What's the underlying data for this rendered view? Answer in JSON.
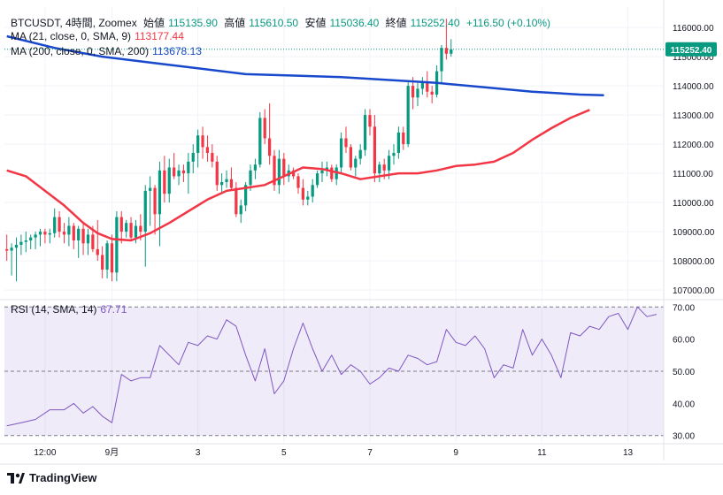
{
  "header": {
    "symbol": "BTCUSDT, 4時間, Zoomex",
    "open_label": "始値",
    "open": "115135.90",
    "high_label": "高値",
    "high": "115610.50",
    "low_label": "安値",
    "low": "115036.40",
    "close_label": "終値",
    "close": "115252.40",
    "change": "+116.50 (+0.10%)"
  },
  "ma21": {
    "label": "MA (21, close, 0, SMA, 9)",
    "value": "113177.44",
    "color": "#f23645"
  },
  "ma200": {
    "label": "MA (200, close, 0, SMA, 200)",
    "value": "113678.13",
    "color": "#1848cc"
  },
  "rsi": {
    "label": "RSI (14, SMA, 14)",
    "value": "67.71",
    "color": "#7e57c2"
  },
  "price_badge": "115252.40",
  "branding": "TradingView",
  "chart_data": {
    "type": "candlestick",
    "price_axis": {
      "ticks": [
        "116000.00",
        "115000.00",
        "114000.00",
        "113000.00",
        "112000.00",
        "111000.00",
        "110000.00",
        "109000.00",
        "108000.00",
        "107000.00"
      ],
      "range": [
        106700,
        116700
      ]
    },
    "rsi_axis": {
      "ticks": [
        "70.00",
        "60.00",
        "50.00",
        "40.00",
        "30.00"
      ],
      "range": [
        28,
        72
      ],
      "band": [
        30,
        70
      ]
    },
    "x_axis": {
      "ticks": [
        {
          "label": "12:00",
          "index": 8
        },
        {
          "label": "9月",
          "index": 22
        },
        {
          "label": "3",
          "index": 40
        },
        {
          "label": "5",
          "index": 58
        },
        {
          "label": "7",
          "index": 76
        },
        {
          "label": "9",
          "index": 94
        },
        {
          "label": "11",
          "index": 112
        },
        {
          "label": "13",
          "index": 130
        }
      ],
      "total_slots": 138
    },
    "candles": [
      [
        108400,
        108900,
        108000,
        108350
      ],
      [
        108350,
        108600,
        107500,
        108450
      ],
      [
        108450,
        108800,
        107300,
        108550
      ],
      [
        108550,
        108900,
        108200,
        108650
      ],
      [
        108650,
        109000,
        108300,
        108700
      ],
      [
        108700,
        108900,
        108400,
        108800
      ],
      [
        108800,
        109000,
        108400,
        108900
      ],
      [
        108900,
        109100,
        108500,
        109000
      ],
      [
        109000,
        109100,
        108600,
        108900
      ],
      [
        108900,
        109100,
        108600,
        108950
      ],
      [
        108950,
        109800,
        108800,
        109500
      ],
      [
        109500,
        109700,
        108800,
        109000
      ],
      [
        109000,
        109300,
        108600,
        108900
      ],
      [
        108900,
        109500,
        108500,
        109200
      ],
      [
        109200,
        109300,
        108400,
        108700
      ],
      [
        108700,
        109200,
        108100,
        109100
      ],
      [
        109100,
        109300,
        108200,
        108600
      ],
      [
        108600,
        109100,
        108200,
        108900
      ],
      [
        108900,
        109200,
        108300,
        108400
      ],
      [
        108400,
        109400,
        108000,
        108200
      ],
      [
        108200,
        108500,
        107400,
        107700
      ],
      [
        107700,
        108700,
        107400,
        108600
      ],
      [
        108600,
        108900,
        107300,
        107600
      ],
      [
        107600,
        109700,
        107300,
        109500
      ],
      [
        109500,
        109700,
        108600,
        109000
      ],
      [
        109000,
        109400,
        108800,
        109300
      ],
      [
        109300,
        109500,
        108700,
        108800
      ],
      [
        108800,
        109400,
        108600,
        109200
      ],
      [
        109200,
        109600,
        108700,
        109000
      ],
      [
        109000,
        110600,
        107800,
        110400
      ],
      [
        110400,
        110900,
        109200,
        110500
      ],
      [
        110500,
        110600,
        108900,
        109600
      ],
      [
        109600,
        111400,
        108500,
        111100
      ],
      [
        111100,
        111600,
        110000,
        110300
      ],
      [
        110300,
        111500,
        110000,
        111200
      ],
      [
        111200,
        111700,
        110800,
        110900
      ],
      [
        110900,
        111300,
        110600,
        111100
      ],
      [
        111100,
        111300,
        110700,
        111000
      ],
      [
        111000,
        111700,
        110300,
        111400
      ],
      [
        111400,
        112000,
        111000,
        111700
      ],
      [
        111700,
        112500,
        111200,
        112300
      ],
      [
        112300,
        112600,
        111500,
        111900
      ],
      [
        111900,
        112300,
        111400,
        111700
      ],
      [
        111700,
        112000,
        111200,
        111400
      ],
      [
        111400,
        111600,
        110400,
        110600
      ],
      [
        110600,
        111000,
        110300,
        110700
      ],
      [
        110700,
        111100,
        110500,
        110800
      ],
      [
        110800,
        111200,
        110400,
        110500
      ],
      [
        110500,
        110700,
        109500,
        109600
      ],
      [
        109600,
        110100,
        109300,
        109900
      ],
      [
        109900,
        110700,
        109700,
        110600
      ],
      [
        110600,
        111300,
        110400,
        111100
      ],
      [
        111100,
        111500,
        110800,
        111300
      ],
      [
        111300,
        113100,
        111200,
        112900
      ],
      [
        112900,
        113200,
        112000,
        112200
      ],
      [
        112200,
        113400,
        111300,
        111600
      ],
      [
        111600,
        111800,
        110400,
        110600
      ],
      [
        110600,
        111800,
        110300,
        111500
      ],
      [
        111500,
        111700,
        110600,
        110900
      ],
      [
        110900,
        111300,
        110700,
        111100
      ],
      [
        111100,
        111200,
        110800,
        110900
      ],
      [
        110900,
        111000,
        110300,
        110500
      ],
      [
        110500,
        110800,
        109900,
        110100
      ],
      [
        110100,
        110400,
        109900,
        110200
      ],
      [
        110200,
        110800,
        110000,
        110600
      ],
      [
        110600,
        111100,
        110500,
        111000
      ],
      [
        111000,
        111400,
        110700,
        111100
      ],
      [
        111100,
        111400,
        110900,
        111200
      ],
      [
        111200,
        111300,
        110700,
        110800
      ],
      [
        110800,
        111300,
        110600,
        111200
      ],
      [
        111200,
        112400,
        111000,
        112200
      ],
      [
        112200,
        112600,
        111700,
        111900
      ],
      [
        111900,
        112000,
        111100,
        111200
      ],
      [
        111200,
        111600,
        110900,
        111500
      ],
      [
        111500,
        112000,
        111300,
        111800
      ],
      [
        111800,
        113200,
        111600,
        113000
      ],
      [
        113000,
        113200,
        112300,
        112600
      ],
      [
        112600,
        113000,
        110700,
        111000
      ],
      [
        111000,
        111400,
        110700,
        111300
      ],
      [
        111300,
        111500,
        110800,
        111100
      ],
      [
        111100,
        111800,
        110800,
        111600
      ],
      [
        111600,
        112000,
        111300,
        111700
      ],
      [
        111700,
        112600,
        111500,
        112400
      ],
      [
        112400,
        112600,
        111800,
        112000
      ],
      [
        112000,
        114200,
        111900,
        114000
      ],
      [
        114000,
        114300,
        113200,
        113600
      ],
      [
        113600,
        114100,
        113300,
        113900
      ],
      [
        113900,
        114300,
        113700,
        114100
      ],
      [
        114100,
        114500,
        113600,
        113800
      ],
      [
        113800,
        114000,
        113400,
        113700
      ],
      [
        113700,
        114700,
        113600,
        114500
      ],
      [
        114500,
        115400,
        114100,
        115300
      ],
      [
        115300,
        116300,
        114900,
        115100
      ],
      [
        115100,
        115600,
        115000,
        115252
      ]
    ],
    "candle_indices": [
      0,
      1,
      2,
      3,
      4,
      5,
      6,
      7,
      8,
      9,
      10,
      11,
      12,
      13,
      14,
      15,
      16,
      17,
      18,
      19,
      20,
      21,
      22,
      23,
      24,
      25,
      26,
      27,
      28,
      29,
      30,
      31,
      32,
      33,
      34,
      35,
      36,
      37,
      38,
      39,
      40,
      41,
      42,
      43,
      44,
      45,
      46,
      47,
      48,
      49,
      50,
      51,
      52,
      53,
      54,
      55,
      56,
      57,
      58,
      59,
      60,
      61,
      62,
      63,
      64,
      65,
      66,
      67,
      68,
      69,
      70,
      71,
      72,
      73,
      74,
      75,
      76,
      77,
      78,
      79,
      80,
      81,
      82,
      83,
      84,
      85,
      86,
      87,
      88,
      89,
      90,
      91,
      92,
      93,
      94,
      95
    ],
    "ma200_line": [
      [
        0,
        115700
      ],
      [
        10,
        115300
      ],
      [
        20,
        115000
      ],
      [
        30,
        114800
      ],
      [
        40,
        114600
      ],
      [
        50,
        114400
      ],
      [
        60,
        114350
      ],
      [
        70,
        114300
      ],
      [
        80,
        114200
      ],
      [
        90,
        114100
      ],
      [
        100,
        113950
      ],
      [
        110,
        113800
      ],
      [
        120,
        113700
      ],
      [
        125,
        113678
      ]
    ],
    "ma21_line": [
      [
        0,
        111100
      ],
      [
        4,
        110900
      ],
      [
        8,
        110400
      ],
      [
        12,
        109900
      ],
      [
        16,
        109300
      ],
      [
        19,
        108950
      ],
      [
        22,
        108750
      ],
      [
        26,
        108700
      ],
      [
        30,
        108950
      ],
      [
        34,
        109300
      ],
      [
        38,
        109700
      ],
      [
        42,
        110100
      ],
      [
        46,
        110400
      ],
      [
        50,
        110500
      ],
      [
        54,
        110600
      ],
      [
        58,
        110900
      ],
      [
        62,
        111200
      ],
      [
        66,
        111150
      ],
      [
        70,
        111000
      ],
      [
        74,
        110800
      ],
      [
        78,
        110900
      ],
      [
        82,
        111000
      ],
      [
        86,
        111000
      ],
      [
        90,
        111100
      ],
      [
        94,
        111250
      ],
      [
        98,
        111300
      ],
      [
        102,
        111400
      ],
      [
        106,
        111700
      ],
      [
        110,
        112150
      ],
      [
        114,
        112550
      ],
      [
        118,
        112900
      ],
      [
        122,
        113177
      ]
    ],
    "rsi_line": [
      [
        0,
        33
      ],
      [
        3,
        34
      ],
      [
        6,
        35
      ],
      [
        9,
        38
      ],
      [
        12,
        38
      ],
      [
        14,
        40
      ],
      [
        16,
        37
      ],
      [
        18,
        39
      ],
      [
        20,
        36
      ],
      [
        22,
        34
      ],
      [
        24,
        49
      ],
      [
        26,
        47
      ],
      [
        28,
        48
      ],
      [
        30,
        48
      ],
      [
        32,
        58
      ],
      [
        34,
        55
      ],
      [
        36,
        52
      ],
      [
        38,
        59
      ],
      [
        40,
        58
      ],
      [
        42,
        61
      ],
      [
        44,
        60
      ],
      [
        46,
        66
      ],
      [
        48,
        64
      ],
      [
        50,
        55
      ],
      [
        52,
        47
      ],
      [
        54,
        57
      ],
      [
        56,
        43
      ],
      [
        58,
        47
      ],
      [
        60,
        57
      ],
      [
        62,
        65
      ],
      [
        64,
        57
      ],
      [
        66,
        50
      ],
      [
        68,
        55
      ],
      [
        70,
        49
      ],
      [
        72,
        52
      ],
      [
        74,
        50
      ],
      [
        76,
        46
      ],
      [
        78,
        48
      ],
      [
        80,
        51
      ],
      [
        82,
        50
      ],
      [
        84,
        55
      ],
      [
        86,
        54
      ],
      [
        88,
        52
      ],
      [
        90,
        53
      ],
      [
        92,
        63
      ],
      [
        94,
        59
      ],
      [
        96,
        58
      ],
      [
        98,
        61
      ],
      [
        100,
        57
      ],
      [
        102,
        48
      ],
      [
        104,
        52
      ],
      [
        106,
        51
      ],
      [
        108,
        63
      ],
      [
        110,
        55
      ],
      [
        112,
        60
      ],
      [
        114,
        55
      ],
      [
        116,
        48
      ],
      [
        118,
        62
      ],
      [
        120,
        61
      ],
      [
        122,
        64
      ],
      [
        124,
        63
      ],
      [
        126,
        67
      ],
      [
        128,
        68
      ],
      [
        130,
        63
      ],
      [
        132,
        70
      ],
      [
        134,
        67
      ],
      [
        136,
        67.7
      ]
    ]
  }
}
